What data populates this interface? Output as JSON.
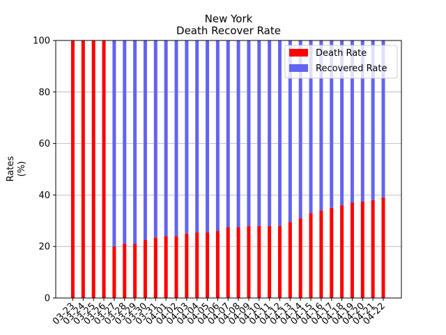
{
  "chart_data": {
    "type": "bar",
    "stacked": true,
    "title": "New York",
    "subtitle": "Death Recover Rate",
    "xlabel": "",
    "ylabel": "Rates",
    "ylabel_unit": "(%)",
    "ylim": [
      0,
      100
    ],
    "yticks": [
      0,
      20,
      40,
      60,
      80,
      100
    ],
    "grid": "y",
    "legend_position": "top-right",
    "categories": [
      "03-23",
      "03-24",
      "03-25",
      "03-26",
      "03-27",
      "03-28",
      "03-29",
      "03-30",
      "03-31",
      "04-01",
      "04-02",
      "04-03",
      "04-04",
      "04-05",
      "04-06",
      "04-07",
      "04-08",
      "04-09",
      "04-10",
      "04-11",
      "04-12",
      "04-13",
      "04-14",
      "04-15",
      "04-16",
      "04-17",
      "04-18",
      "04-19",
      "04-20",
      "04-21",
      "04-22"
    ],
    "series": [
      {
        "name": "Death Rate",
        "color": "#ff0000",
        "values": [
          100,
          100,
          100,
          100,
          20,
          21,
          21,
          22.5,
          23.5,
          24,
          24,
          25,
          25.5,
          25.5,
          26,
          27.5,
          27.5,
          28,
          28,
          28,
          28,
          29.5,
          31,
          33,
          34,
          35,
          36,
          37,
          37.5,
          38,
          39
        ]
      },
      {
        "name": "Recovered Rate",
        "color": "#6464f0",
        "values": [
          0,
          0,
          0,
          0,
          80,
          79,
          79,
          77.5,
          76.5,
          76,
          76,
          75,
          74.5,
          74.5,
          74,
          72.5,
          72.5,
          72,
          72,
          72,
          72,
          70.5,
          69,
          67,
          66,
          65,
          64,
          63,
          62.5,
          62,
          61
        ]
      }
    ]
  }
}
